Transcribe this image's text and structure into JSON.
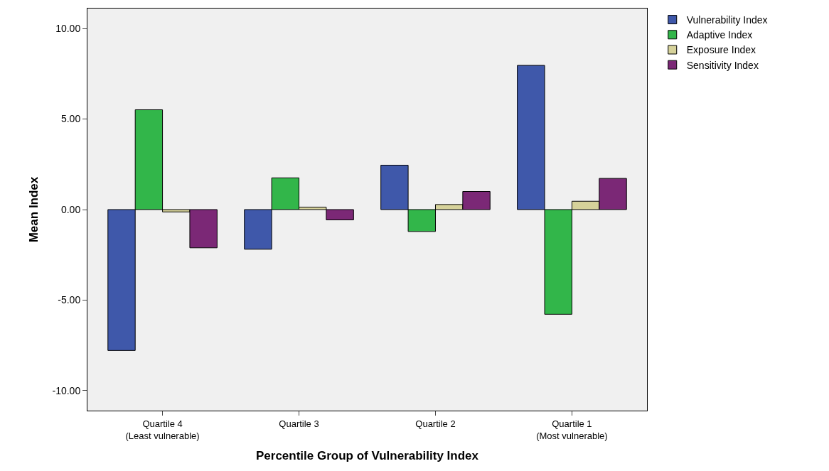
{
  "chart_data": {
    "type": "bar",
    "xlabel": "Percentile Group of Vulnerability Index",
    "ylabel": "Mean Index",
    "categories": [
      "Quartile 4 (Least vulnerable)",
      "Quartile 3",
      "Quartile 2",
      "Quartile 1 (Most vulnerable)"
    ],
    "series": [
      {
        "name": "Vulnerability Index",
        "color": "#3f58aa",
        "values": [
          -7.78,
          -2.19,
          2.45,
          7.96
        ]
      },
      {
        "name": "Adaptive Index",
        "color": "#32b64a",
        "values": [
          5.51,
          1.75,
          -1.21,
          -5.78
        ]
      },
      {
        "name": "Exposure Index",
        "color": "#d6d29a",
        "values": [
          -0.13,
          0.13,
          0.28,
          0.46
        ]
      },
      {
        "name": "Sensitivity Index",
        "color": "#7b2876",
        "values": [
          -2.11,
          -0.57,
          1.0,
          1.72
        ]
      }
    ],
    "ylim": [
      -11.1,
      11.1
    ],
    "yticks": [
      {
        "value": -10,
        "label": "-10.00"
      },
      {
        "value": -5,
        "label": "-5.00"
      },
      {
        "value": 0,
        "label": "0.00"
      },
      {
        "value": 5,
        "label": "5.00"
      },
      {
        "value": 10,
        "label": "10.00"
      }
    ],
    "grid": false,
    "legend": "top right"
  }
}
